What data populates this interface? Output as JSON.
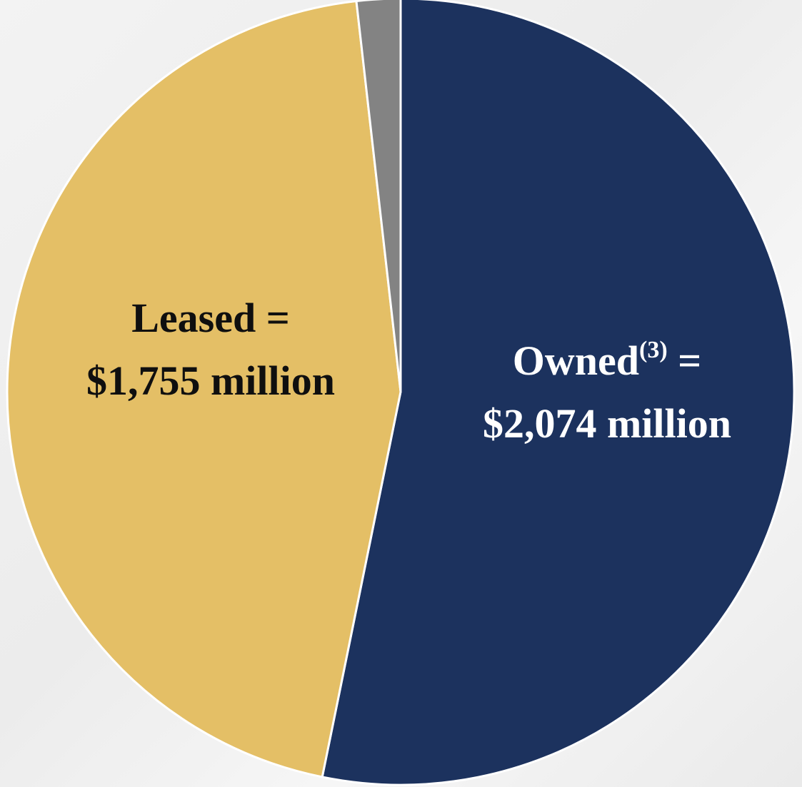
{
  "chart_data": {
    "type": "pie",
    "slices": [
      {
        "label": "Owned",
        "superscript": "(3)",
        "value": 2074,
        "value_text": "$2,074 million",
        "color": "#1c325e",
        "text_color": "#ffffff"
      },
      {
        "label": "Leased",
        "value": 1755,
        "value_text": "$1,755 million",
        "color": "#e4bf66",
        "text_color": "#0f0f0f"
      },
      {
        "label": "",
        "value": 70,
        "color": "#838383"
      }
    ],
    "title": "",
    "start": "12 o'clock",
    "direction": "clockwise"
  },
  "labels": {
    "leased_line1": "Leased =",
    "leased_line2": "$1,755 million",
    "owned_name": "Owned",
    "owned_sup": "(3)",
    "owned_eq": " =",
    "owned_line2": "$2,074 million"
  },
  "colors": {
    "background": "#efefef",
    "slice_border": "#ffffff"
  }
}
